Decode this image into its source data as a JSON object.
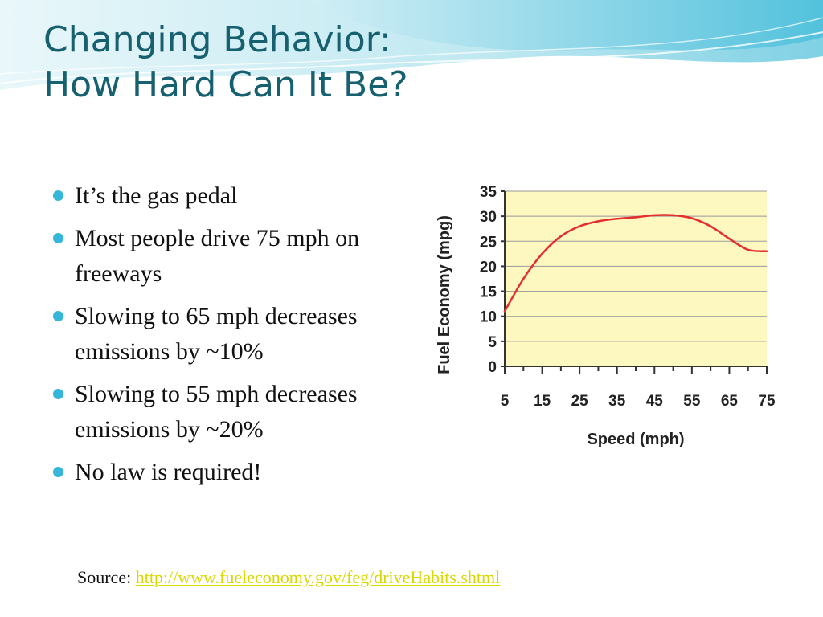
{
  "slide": {
    "title_line1": "Changing Behavior:",
    "title_line2": "How Hard Can It Be?",
    "bullets": [
      "It’s the gas pedal",
      "Most people drive 75 mph on freeways",
      "Slowing to 65 mph decreases emissions by ~10%",
      "Slowing to 55 mph decreases emissions by ~20%",
      "No law is required!"
    ],
    "source_label": "Source:",
    "source_link": "http://www.fueleconomy.gov/feg/driveHabits.shtml"
  },
  "colors": {
    "title": "#17606f",
    "bullet": "#34b7d8",
    "link": "#d8d800",
    "plot_bg": "#fdf8c0",
    "line": "#e62e2e",
    "grid": "#999999"
  },
  "chart_data": {
    "type": "line",
    "title": "",
    "xlabel": "Speed (mph)",
    "ylabel": "Fuel Economy (mpg)",
    "xlim": [
      5,
      75
    ],
    "ylim": [
      0,
      35
    ],
    "x_ticks": [
      5,
      15,
      25,
      35,
      45,
      55,
      65,
      75
    ],
    "y_ticks": [
      0,
      5,
      10,
      15,
      20,
      25,
      30,
      35
    ],
    "grid": "horizontal",
    "series": [
      {
        "name": "",
        "x": [
          5,
          10,
          15,
          20,
          25,
          30,
          35,
          40,
          45,
          50,
          55,
          60,
          65,
          70,
          75
        ],
        "y": [
          11,
          17.5,
          22.5,
          26,
          28,
          29,
          29.5,
          29.8,
          30.2,
          30.2,
          29.6,
          28,
          25.5,
          23.3,
          23
        ]
      }
    ]
  }
}
